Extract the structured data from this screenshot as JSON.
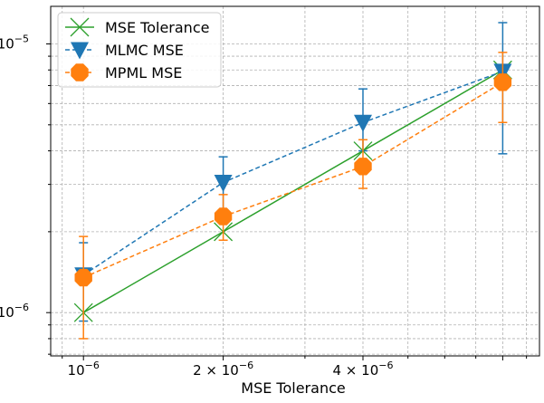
{
  "chart_data": {
    "type": "line",
    "xlabel": "MSE Tolerance",
    "ylabel": "",
    "xscale": "log",
    "yscale": "log",
    "xlim": [
      8.5e-07,
      9.6e-06
    ],
    "ylim": [
      6.9e-07,
      1.38e-05
    ],
    "grid": true,
    "legend_position": "top-left",
    "x_tick_labels": [
      {
        "value": 1e-06,
        "base": "10",
        "exp": "−6",
        "mult": ""
      },
      {
        "value": 2e-06,
        "base": "10",
        "exp": "−6",
        "mult": "2 × "
      },
      {
        "value": 4e-06,
        "base": "10",
        "exp": "−6",
        "mult": "4 × "
      }
    ],
    "y_tick_labels": [
      {
        "value": 1e-06,
        "base": "10",
        "exp": "−6"
      },
      {
        "value": 1e-05,
        "base": "10",
        "exp": "−5"
      }
    ],
    "series": [
      {
        "name": "MSE Tolerance",
        "color": "#2ca02c",
        "marker": "x",
        "linestyle": "solid",
        "x": [
          1e-06,
          2e-06,
          4e-06,
          8e-06
        ],
        "y": [
          1e-06,
          2e-06,
          4e-06,
          8e-06
        ]
      },
      {
        "name": "MLMC MSE",
        "color": "#1f77b4",
        "marker": "triangle-down",
        "linestyle": "dashed",
        "x": [
          1e-06,
          2e-06,
          4e-06,
          8e-06
        ],
        "y": [
          1.38e-06,
          3.05e-06,
          5.1e-06,
          7.9e-06
        ],
        "err_low": [
          9.3e-07,
          2.2e-06,
          4e-06,
          3.9e-06
        ],
        "err_high": [
          1.82e-06,
          3.8e-06,
          6.8e-06,
          1.2e-05
        ]
      },
      {
        "name": "MPML MSE",
        "color": "#ff7f0e",
        "marker": "octagon",
        "linestyle": "dashed",
        "x": [
          1e-06,
          2e-06,
          4e-06,
          8e-06
        ],
        "y": [
          1.35e-06,
          2.28e-06,
          3.5e-06,
          7.2e-06
        ],
        "err_low": [
          8e-07,
          1.86e-06,
          2.9e-06,
          5.1e-06
        ],
        "err_high": [
          1.92e-06,
          2.75e-06,
          4.4e-06,
          9.3e-06
        ]
      }
    ]
  }
}
